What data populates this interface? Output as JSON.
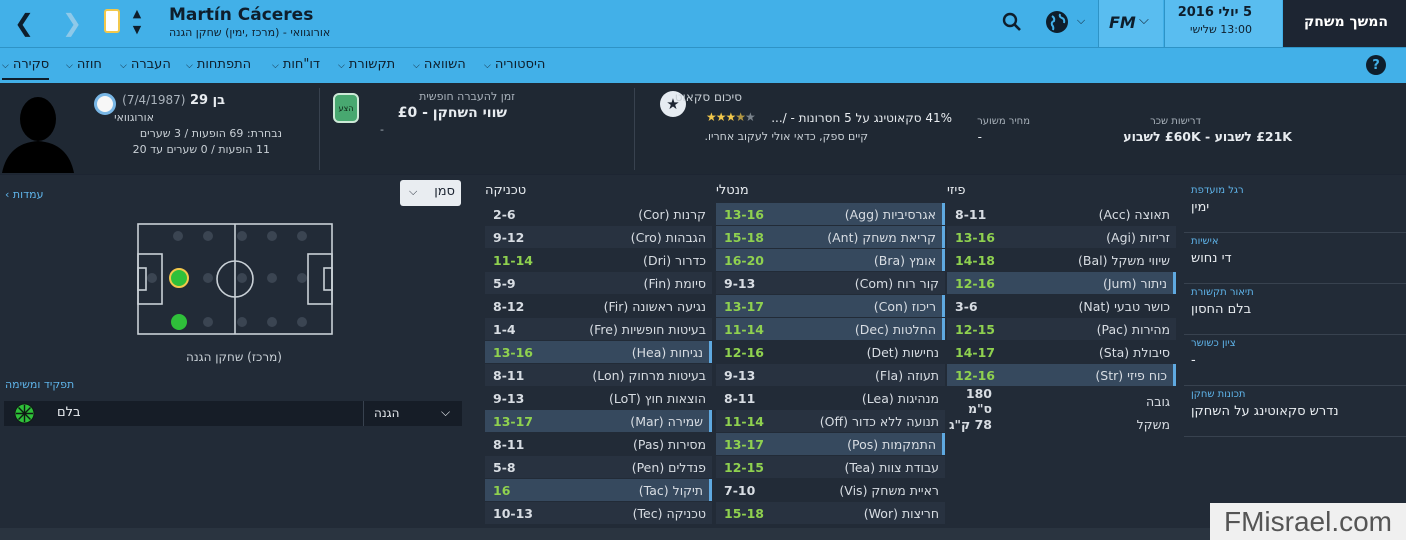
{
  "topbar": {
    "player_name": "Martín Cáceres",
    "player_subtitle": "אורוגוואי - (מרכז ,ימין) שחקן הגנה",
    "date": "5 יולי 2016",
    "day_time": "13:00 שלישי",
    "continue_label": "המשך משחק",
    "fm_label": "FM"
  },
  "tabs": [
    "סקירה",
    "חוזה",
    "העברה",
    "התפתחות",
    "דו\"חות",
    "תקשורת",
    "השוואה",
    "היסטוריה"
  ],
  "summary": {
    "age": "בן 29",
    "dob": "(7/4/1987)",
    "nation": "אורוגוואי",
    "national_caps": "נבחרת: 69 הופעות / 3 שערים",
    "u21": "11 הופעות / 0 שערים עד 20",
    "transfer_label": "זמן להעברה חופשית",
    "value_label": "שווי השחקן - £0",
    "value_sub": "-",
    "badge": "הצע",
    "scout_title": "סיכום סקאוט",
    "scout_line1": "41% סקאוטינג על 5 חסרונות - /...",
    "scout_line2": "קיים ספק, כדאי אולי לעקוב אחריו.",
    "stars": 3.5,
    "est_price_label": "מחיר משוער",
    "est_price": "-",
    "wage_label": "דרישות שכר",
    "wage": "£21K לשבוע - £60K לשבוע"
  },
  "pitch": {
    "dropdown": "סמן",
    "positions_link": "עמדות",
    "role_caption": "(מרכז) שחקן הגנה",
    "role_header": "תפקיד ומשימה",
    "role_name": "בלם",
    "duty": "הגנה"
  },
  "technique": {
    "title": "טכניקה",
    "rows": [
      {
        "label": "קרנות (Cor)",
        "value": "2-6",
        "hl": false
      },
      {
        "label": "הגבהות (Cro)",
        "value": "9-12",
        "hl": false
      },
      {
        "label": "כדרור (Dri)",
        "value": "11-14",
        "hl": false
      },
      {
        "label": "סיומת (Fin)",
        "value": "5-9",
        "hl": false
      },
      {
        "label": "נגיעה ראשונה (Fir)",
        "value": "8-12",
        "hl": false
      },
      {
        "label": "בעיטות חופשיות (Fre)",
        "value": "1-4",
        "hl": false
      },
      {
        "label": "נגיחות (Hea)",
        "value": "13-16",
        "hl": true
      },
      {
        "label": "בעיטות מרחוק (Lon)",
        "value": "8-11",
        "hl": false
      },
      {
        "label": "הוצאות חוץ (LoT)",
        "value": "9-13",
        "hl": false
      },
      {
        "label": "שמירה (Mar)",
        "value": "13-17",
        "hl": true
      },
      {
        "label": "מסירות (Pas)",
        "value": "8-11",
        "hl": false
      },
      {
        "label": "פנדלים (Pen)",
        "value": "5-8",
        "hl": false
      },
      {
        "label": "תיקול (Tac)",
        "value": "16",
        "hl": true
      },
      {
        "label": "טכניקה (Tec)",
        "value": "10-13",
        "hl": false
      }
    ]
  },
  "mental": {
    "title": "מנטלי",
    "rows": [
      {
        "label": "אגרסיביות (Agg)",
        "value": "13-16",
        "hl": true
      },
      {
        "label": "קריאת משחק (Ant)",
        "value": "15-18",
        "hl": true
      },
      {
        "label": "אומץ (Bra)",
        "value": "16-20",
        "hl": true
      },
      {
        "label": "קור רוח (Com)",
        "value": "9-13",
        "hl": false
      },
      {
        "label": "ריכוז (Con)",
        "value": "13-17",
        "hl": true
      },
      {
        "label": "החלטות (Dec)",
        "value": "11-14",
        "hl": true
      },
      {
        "label": "נחישות (Det)",
        "value": "12-16",
        "hl": false
      },
      {
        "label": "תעוזה (Fla)",
        "value": "9-13",
        "hl": false
      },
      {
        "label": "מנהיגות (Lea)",
        "value": "8-11",
        "hl": false
      },
      {
        "label": "תנועה ללא כדור (Off)",
        "value": "11-14",
        "hl": false
      },
      {
        "label": "התמקמות (Pos)",
        "value": "13-17",
        "hl": true
      },
      {
        "label": "עבודת צוות (Tea)",
        "value": "12-15",
        "hl": false
      },
      {
        "label": "ראיית משחק (Vis)",
        "value": "7-10",
        "hl": false
      },
      {
        "label": "חריצות (Wor)",
        "value": "15-18",
        "hl": false
      }
    ]
  },
  "physical": {
    "title": "פיזי",
    "rows": [
      {
        "label": "תאוצה (Acc)",
        "value": "8-11",
        "hl": false
      },
      {
        "label": "זריזות (Agi)",
        "value": "13-16",
        "hl": false
      },
      {
        "label": "שיווי משקל (Bal)",
        "value": "14-18",
        "hl": false
      },
      {
        "label": "ניתור (Jum)",
        "value": "12-16",
        "hl": true
      },
      {
        "label": "כושר טבעי (Nat)",
        "value": "3-6",
        "hl": false
      },
      {
        "label": "מהירות (Pac)",
        "value": "12-15",
        "hl": false
      },
      {
        "label": "סיבולת (Sta)",
        "value": "14-17",
        "hl": false
      },
      {
        "label": "כוח פיזי (Str)",
        "value": "12-16",
        "hl": true
      }
    ],
    "height_label": "גובה",
    "height": "180 ס\"מ",
    "weight_label": "משקל",
    "weight": "78 ק\"ג"
  },
  "info": [
    {
      "label": "רגל מועדפת",
      "value": "ימין"
    },
    {
      "label": "אישיות",
      "value": "די נחוש"
    },
    {
      "label": "תיאור תקשורת",
      "value": "בלם החסון"
    },
    {
      "label": "ציון כשושר",
      "value": "-"
    },
    {
      "label": "תכונות שחקן",
      "value": "נדרש סקאוטינג על השחקן"
    }
  ],
  "watermark": "FMisrael.com",
  "colors": {
    "accent": "#42b0e8",
    "good": "#8fd14f",
    "highlight": "#36495e"
  }
}
